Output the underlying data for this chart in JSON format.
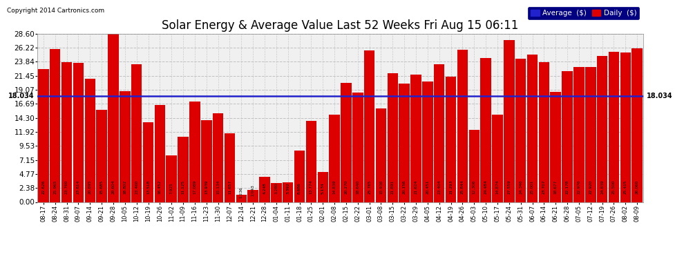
{
  "title": "Solar Energy & Average Value Last 52 Weeks Fri Aug 15 06:11",
  "copyright": "Copyright 2014 Cartronics.com",
  "average_line": 18.034,
  "average_label": "18.034",
  "bar_color": "#dd0000",
  "average_line_color": "#2222cc",
  "background_color": "#ffffff",
  "plot_bg_color": "#f0f0f0",
  "grid_color": "#bbbbbb",
  "ylim": [
    0.0,
    28.6
  ],
  "yticks": [
    0.0,
    2.38,
    4.77,
    7.15,
    9.53,
    11.92,
    14.3,
    16.69,
    19.07,
    21.45,
    23.84,
    26.22,
    28.6
  ],
  "categories": [
    "08-17",
    "08-24",
    "08-31",
    "09-07",
    "09-14",
    "09-21",
    "09-28",
    "10-05",
    "10-12",
    "10-19",
    "10-26",
    "11-02",
    "11-09",
    "11-16",
    "11-23",
    "11-30",
    "12-07",
    "12-14",
    "12-21",
    "12-28",
    "01-04",
    "01-11",
    "01-18",
    "01-25",
    "02-01",
    "02-08",
    "02-15",
    "02-22",
    "03-01",
    "03-08",
    "03-15",
    "03-22",
    "03-29",
    "04-05",
    "04-12",
    "04-19",
    "04-26",
    "05-03",
    "05-10",
    "05-17",
    "05-24",
    "05-31",
    "06-07",
    "06-14",
    "06-21",
    "06-28",
    "07-05",
    "07-12",
    "07-19",
    "07-26",
    "08-02",
    "08-09"
  ],
  "values": [
    22.626,
    25.965,
    23.76,
    23.614,
    20.895,
    15.685,
    28.604,
    18.802,
    23.46,
    13.518,
    16.452,
    7.925,
    11.125,
    17.089,
    13.939,
    15.134,
    11.657,
    1.236,
    2.043,
    4.248,
    3.28,
    3.392,
    8.686,
    13.774,
    5.134,
    14.839,
    20.27,
    18.64,
    25.765,
    15.936,
    21.891,
    20.156,
    21.624,
    20.451,
    23.404,
    21.293,
    25.844,
    12.306,
    24.484,
    14.874,
    27.559,
    24.346,
    25.001,
    23.707,
    18.677,
    22.178,
    22.976,
    22.92,
    24.839,
    25.5,
    25.415,
    26.06
  ],
  "legend_avg_color": "#2222cc",
  "legend_daily_color": "#dd0000",
  "title_fontsize": 12
}
